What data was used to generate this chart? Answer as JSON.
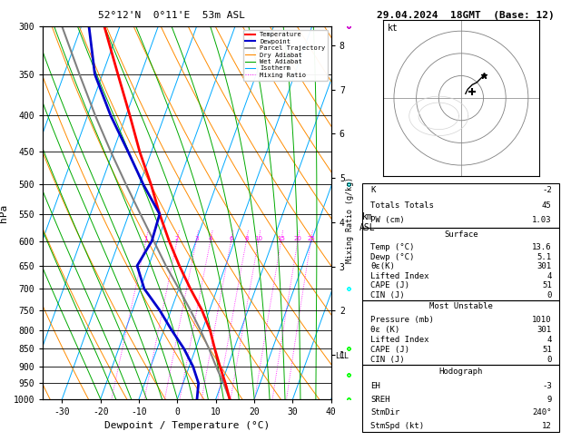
{
  "title_left": "52°12'N  0°11'E  53m ASL",
  "title_right": "29.04.2024  18GMT  (Base: 12)",
  "xlabel": "Dewpoint / Temperature (°C)",
  "ylabel_left": "hPa",
  "pressure_levels": [
    300,
    350,
    400,
    450,
    500,
    550,
    600,
    650,
    700,
    750,
    800,
    850,
    900,
    950,
    1000
  ],
  "xlim": [
    -35,
    40
  ],
  "temp_profile": {
    "pressure": [
      1000,
      950,
      900,
      850,
      800,
      750,
      700,
      650,
      600,
      550,
      500,
      450,
      400,
      350,
      300
    ],
    "temp": [
      13.6,
      11.0,
      8.0,
      5.0,
      2.0,
      -2.0,
      -7.0,
      -12.0,
      -17.0,
      -22.0,
      -27.0,
      -33.0,
      -39.0,
      -46.0,
      -54.0
    ]
  },
  "dewp_profile": {
    "pressure": [
      1000,
      950,
      900,
      850,
      800,
      750,
      700,
      650,
      600,
      550,
      500,
      450,
      400,
      350,
      300
    ],
    "temp": [
      5.1,
      4.0,
      1.0,
      -3.0,
      -8.0,
      -13.0,
      -19.0,
      -23.0,
      -21.5,
      -22.0,
      -29.0,
      -36.0,
      -44.0,
      -52.0,
      -58.0
    ]
  },
  "parcel_profile": {
    "pressure": [
      1000,
      950,
      900,
      850,
      800,
      750,
      700,
      650,
      600,
      550,
      500,
      450,
      400,
      350,
      300
    ],
    "temp": [
      13.6,
      10.5,
      7.0,
      3.5,
      -0.5,
      -5.0,
      -10.0,
      -15.5,
      -21.0,
      -27.0,
      -33.5,
      -40.5,
      -48.0,
      -56.0,
      -65.0
    ]
  },
  "stats": {
    "K": "-2",
    "Totals_Totals": "45",
    "PW_cm": "1.03",
    "Surface_Temp": "13.6",
    "Surface_Dewp": "5.1",
    "Surface_theta_e": "301",
    "Surface_LI": "4",
    "Surface_CAPE": "51",
    "Surface_CIN": "0",
    "MU_Pressure": "1010",
    "MU_theta_e": "301",
    "MU_LI": "4",
    "MU_CAPE": "51",
    "MU_CIN": "0",
    "Hodo_EH": "-3",
    "Hodo_SREH": "9",
    "Hodo_StmDir": "240°",
    "Hodo_StmSpd": "12"
  },
  "mixing_ratio_lines": [
    1,
    2,
    3,
    4,
    6,
    8,
    10,
    15,
    20,
    25
  ],
  "lcl_pressure": 870,
  "colors": {
    "temp": "#ff0000",
    "dewp": "#0000cc",
    "parcel": "#808080",
    "dry_adiabat": "#ff8c00",
    "wet_adiabat": "#00aa00",
    "isotherm": "#00aaff",
    "mixing_ratio": "#ff00ff"
  },
  "skew_amount": 35.0,
  "p_max": 1000,
  "p_min": 300,
  "km_ticks": [
    1,
    2,
    3,
    4,
    5,
    6,
    7,
    8
  ],
  "wind_data": [
    [
      1000,
      210,
      5
    ],
    [
      925,
      220,
      8
    ],
    [
      850,
      240,
      10
    ],
    [
      700,
      280,
      15
    ],
    [
      500,
      270,
      20
    ],
    [
      300,
      300,
      35
    ]
  ],
  "hodo_u": [
    2,
    3,
    5,
    7,
    8,
    10
  ],
  "hodo_v": [
    2,
    4,
    6,
    7,
    8,
    10
  ]
}
